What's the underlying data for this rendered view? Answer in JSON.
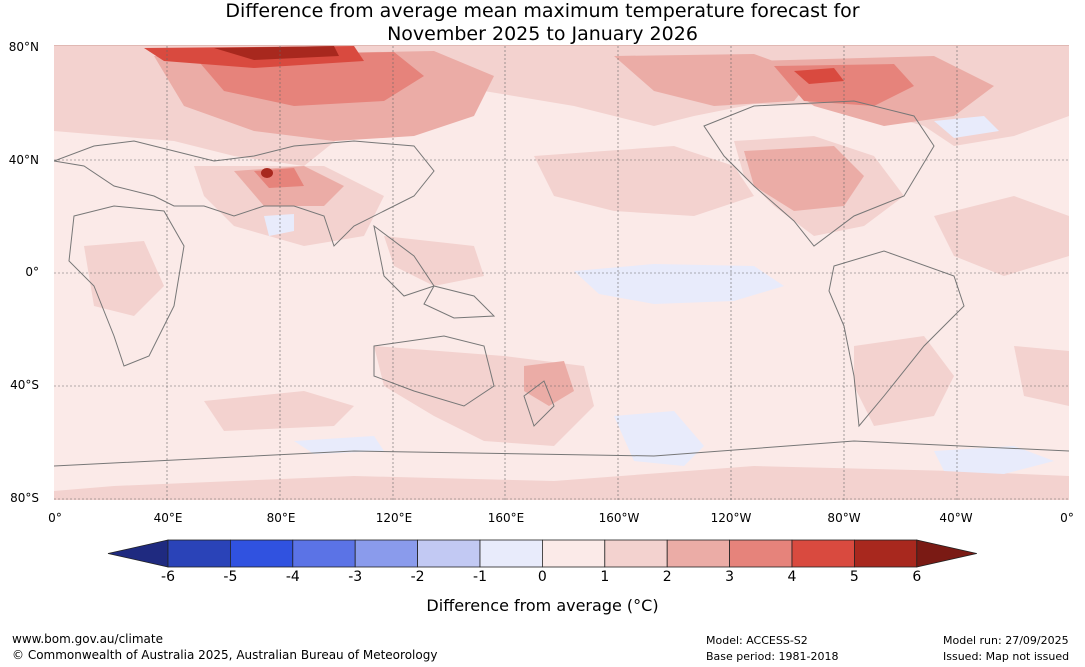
{
  "title": {
    "line1": "Difference from average mean maximum temperature forecast for",
    "line2": "November 2025 to January 2026"
  },
  "map": {
    "lat_labels": [
      "80°N",
      "40°N",
      "0°",
      "40°S",
      "80°S"
    ],
    "lon_labels": [
      "0°",
      "40°E",
      "80°E",
      "120°E",
      "160°E",
      "160°W",
      "120°W",
      "80°W",
      "40°W",
      "0°"
    ]
  },
  "legend": {
    "ticks": [
      "-6",
      "-5",
      "-4",
      "-3",
      "-2",
      "-1",
      "0",
      "1",
      "2",
      "3",
      "4",
      "5",
      "6"
    ],
    "label": "Difference from average (°C)",
    "colors": [
      "#1f2a80",
      "#2a43b8",
      "#3052e0",
      "#5b73e6",
      "#8a9bec",
      "#c2c9f3",
      "#e8ebfb",
      "#fbeae8",
      "#f3d2cf",
      "#ebaca6",
      "#e6837b",
      "#d94a3f",
      "#a8281e",
      "#7a1a14"
    ]
  },
  "footer": {
    "url": "www.bom.gov.au/climate",
    "copyright": "© Commonwealth of Australia 2025, Australian Bureau of Meteorology",
    "model": "Model: ACCESS-S2",
    "base_period": "Base period: 1981-2018",
    "model_run": "Model run: 27/09/2025",
    "issued": "Issued: Map not issued"
  }
}
